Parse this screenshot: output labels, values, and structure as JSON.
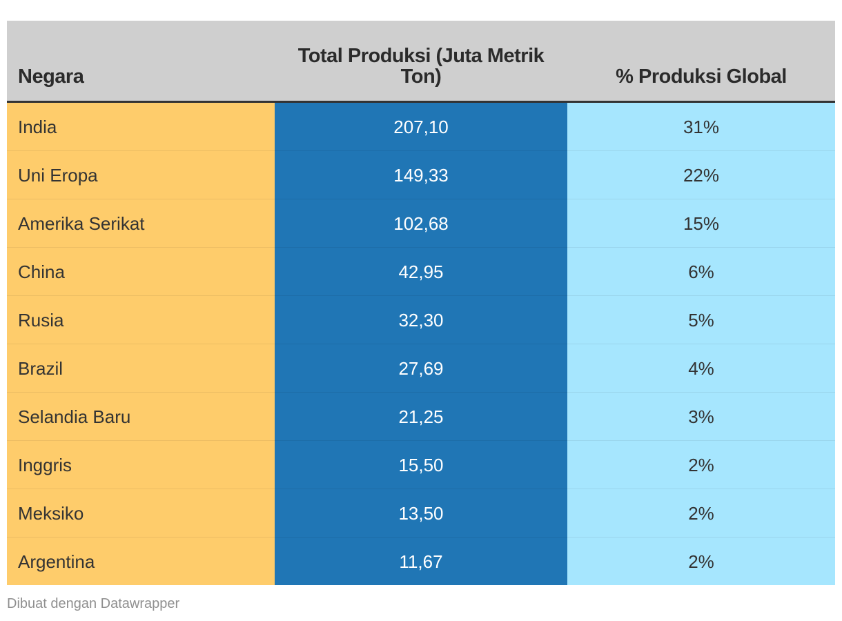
{
  "chart_data": {
    "type": "table",
    "columns": [
      "Negara",
      "Total Produksi (Juta Metrik Ton)",
      "% Produksi Global"
    ],
    "rows": [
      {
        "country": "India",
        "total": "207,10",
        "pct": "31%"
      },
      {
        "country": "Uni Eropa",
        "total": "149,33",
        "pct": "22%"
      },
      {
        "country": "Amerika Serikat",
        "total": "102,68",
        "pct": "15%"
      },
      {
        "country": "China",
        "total": "42,95",
        "pct": "6%"
      },
      {
        "country": "Rusia",
        "total": "32,30",
        "pct": "5%"
      },
      {
        "country": "Brazil",
        "total": "27,69",
        "pct": "4%"
      },
      {
        "country": "Selandia Baru",
        "total": "21,25",
        "pct": "3%"
      },
      {
        "country": "Inggris",
        "total": "15,50",
        "pct": "2%"
      },
      {
        "country": "Meksiko",
        "total": "13,50",
        "pct": "2%"
      },
      {
        "country": "Argentina",
        "total": "11,67",
        "pct": "2%"
      }
    ],
    "colors": {
      "header_background": "#cfcfcf",
      "country_column": "#fecc6b",
      "total_column": "#2076b5",
      "percent_column": "#a6e6fe"
    }
  },
  "footer": {
    "credit": "Dibuat dengan Datawrapper"
  }
}
